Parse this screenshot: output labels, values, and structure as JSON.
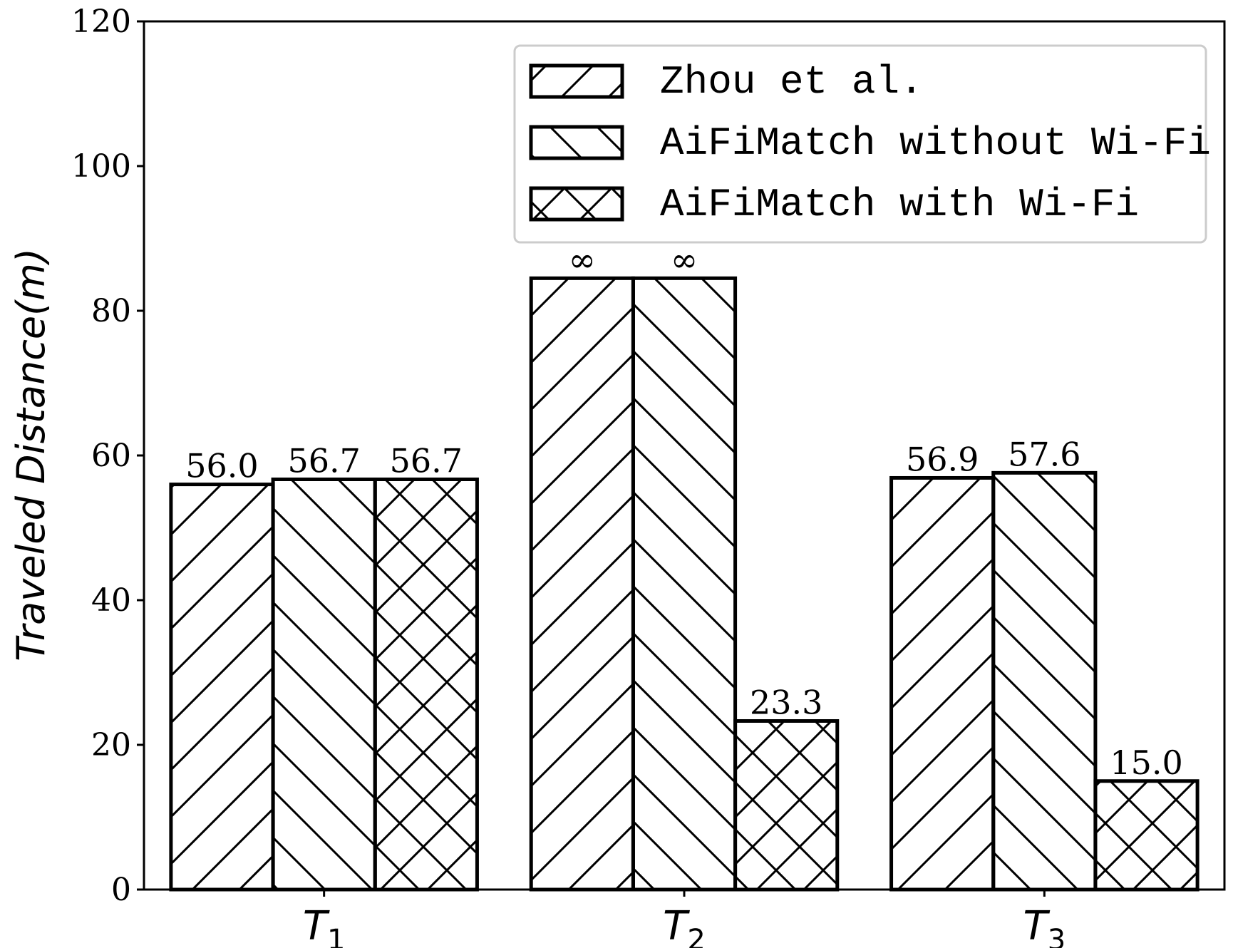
{
  "chart_data": {
    "type": "bar",
    "categories": [
      "T1",
      "T2",
      "T3"
    ],
    "category_labels": [
      {
        "main": "T",
        "sub": "1"
      },
      {
        "main": "T",
        "sub": "2"
      },
      {
        "main": "T",
        "sub": "3"
      }
    ],
    "ylabel": "Traveled Distance(m)",
    "ylim": [
      0,
      120
    ],
    "yticks": [
      0,
      20,
      40,
      60,
      80,
      100,
      120
    ],
    "legend_position": "top-right",
    "grid": false,
    "series": [
      {
        "name": "Zhou et al.",
        "hatch": "forward-diagonal",
        "values": [
          56.0,
          null,
          56.9
        ],
        "labels": [
          "56.0",
          "∞",
          "56.9"
        ]
      },
      {
        "name": "AiFiMatch without Wi-Fi",
        "hatch": "backward-diagonal",
        "values": [
          56.7,
          null,
          57.6
        ],
        "labels": [
          "56.7",
          "∞",
          "57.6"
        ]
      },
      {
        "name": "AiFiMatch with Wi-Fi",
        "hatch": "cross",
        "values": [
          56.7,
          23.3,
          15.0
        ],
        "labels": [
          "56.7",
          "23.3",
          "15.0"
        ]
      }
    ],
    "infinite_bar_display_value": 84.5
  },
  "colors": {
    "bar_fill": "#ffffff",
    "bar_edge": "#000000",
    "legend_edge": "#cccccc"
  }
}
